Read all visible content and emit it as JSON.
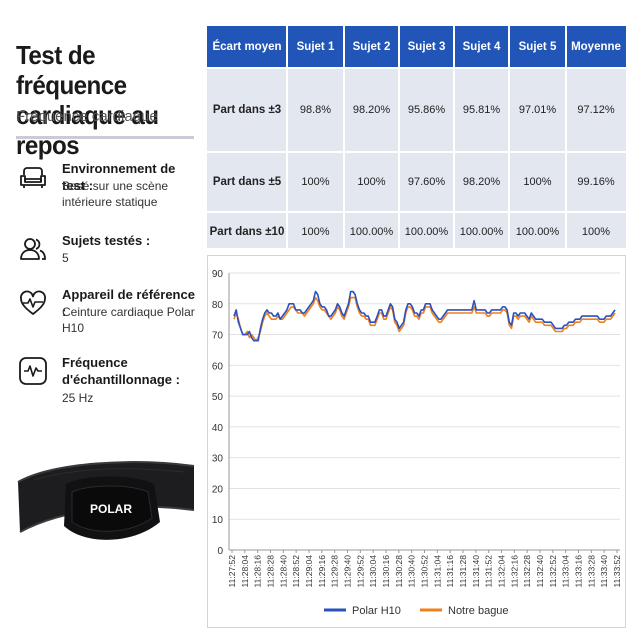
{
  "header": {
    "title": "Test de fréquence cardiaque au repos",
    "subtitle": "Fréquence cardiaque"
  },
  "info": [
    {
      "icon": "armchair-icon",
      "label": "Environnement de test :",
      "value": "Basé sur une scène intérieure statique"
    },
    {
      "icon": "users-icon",
      "label": "Sujets testés :",
      "value": "5"
    },
    {
      "icon": "heart-pulse-icon",
      "label": "Appareil de référence :",
      "value": "Ceinture cardiaque Polar H10"
    },
    {
      "icon": "waveform-icon",
      "label": "Fréquence d'échantillonnage :",
      "value": "25 Hz"
    }
  ],
  "device": {
    "brand": "POLAR"
  },
  "table": {
    "headers": [
      "Écart moyen",
      "Sujet 1",
      "Sujet 2",
      "Sujet 3",
      "Sujet 4",
      "Sujet 5",
      "Moyenne"
    ],
    "rows": [
      [
        "Part dans ±3",
        "98.8%",
        "98.20%",
        "95.86%",
        "95.81%",
        "97.01%",
        "97.12%"
      ],
      [
        "Part dans ±5",
        "100%",
        "100%",
        "97.60%",
        "98.20%",
        "100%",
        "99.16%"
      ],
      [
        "Part dans ±10",
        "100%",
        "100.00%",
        "100.00%",
        "100.00%",
        "100.00%",
        "100%"
      ]
    ]
  },
  "chart_data": {
    "type": "line",
    "ylim": [
      0,
      90
    ],
    "yticks": [
      0,
      10,
      20,
      30,
      40,
      50,
      60,
      70,
      80,
      90
    ],
    "x_tick_labels": [
      "11:27:52",
      "11:28:04",
      "11:28:16",
      "11:28:28",
      "11:28:40",
      "11:28:52",
      "11:29:04",
      "11:29:16",
      "11:29:28",
      "11:29:40",
      "11:29:52",
      "11:30:04",
      "11:30:16",
      "11:30:28",
      "11:30:40",
      "11:30:52",
      "11:31:04",
      "11:31:16",
      "11:31:28",
      "11:31:40",
      "11:31:52",
      "11:32:04",
      "11:32:16",
      "11:32:28",
      "11:32:40",
      "11:32:52",
      "11:33:04",
      "11:33:16",
      "11:33:28",
      "11:33:40",
      "11:33:52"
    ],
    "x_tick_labels_source": [
      "11:27:52",
      "11:28:04",
      "11:28:16",
      "11:28:28",
      "11:28:40",
      "11:28:52",
      "11:29:04",
      "11:29:16",
      "11:29:28",
      "11:29:40",
      "11:29:52",
      "11:30:04",
      "11:30:16",
      "11:30:28",
      "11:30:40",
      "11:30:52",
      "11:31:04",
      "11:31:16",
      "11:31:28",
      "11:31:40",
      "11:31:52",
      "11:32:04",
      "11:32:16",
      "11:32:28",
      "11:32:40",
      "11:32:52",
      "11:33:04",
      "11:33:16",
      "11:33:28",
      "11:33:40",
      "11:33:52"
    ],
    "legend": "bottom",
    "grid": true,
    "series": [
      {
        "name": "Polar H10",
        "color": "#2a52be",
        "values": [
          76,
          78,
          74,
          72,
          70,
          70,
          70,
          71,
          69,
          68,
          68,
          68,
          72,
          75,
          77,
          78,
          77,
          77,
          76,
          76,
          77,
          75,
          76,
          77,
          78,
          80,
          80,
          80,
          78,
          78,
          78,
          77,
          77,
          78,
          79,
          80,
          81,
          84,
          83,
          80,
          79,
          79,
          78,
          76,
          76,
          77,
          78,
          80,
          79,
          77,
          76,
          78,
          80,
          84,
          84,
          83,
          80,
          78,
          77,
          77,
          76,
          76,
          74,
          74,
          74,
          76,
          78,
          78,
          76,
          76,
          78,
          80,
          79,
          75,
          74,
          72,
          73,
          74,
          78,
          80,
          80,
          79,
          77,
          77,
          76,
          78,
          78,
          80,
          80,
          80,
          78,
          77,
          76,
          75,
          75,
          76,
          77,
          78,
          78,
          78,
          78,
          78,
          78,
          78,
          78,
          78,
          78,
          78,
          78,
          81,
          78,
          78,
          78,
          78,
          78,
          77,
          77,
          78,
          78,
          78,
          78,
          78,
          79,
          79,
          78,
          74,
          73,
          77,
          77,
          76,
          77,
          77,
          77,
          76,
          75,
          77,
          76,
          75,
          75,
          75,
          75,
          74,
          74,
          74,
          74,
          73,
          72,
          72,
          72,
          72,
          73,
          73,
          74,
          74,
          74,
          75,
          75,
          75,
          76,
          76,
          76,
          76,
          76,
          76,
          76,
          76,
          75,
          75,
          75,
          76,
          76,
          76,
          77,
          78
        ]
      },
      {
        "name": "Notre bague",
        "color": "#f07f1e",
        "values": [
          75,
          77,
          75,
          72,
          70,
          70,
          71,
          69,
          70,
          69,
          68,
          69,
          71,
          74,
          76,
          77,
          76,
          75,
          75,
          75,
          76,
          75,
          75,
          76,
          77,
          78,
          79,
          79,
          78,
          77,
          77,
          77,
          76,
          77,
          78,
          79,
          80,
          82,
          81,
          79,
          78,
          78,
          77,
          76,
          75,
          76,
          77,
          79,
          78,
          76,
          75,
          77,
          79,
          82,
          82,
          82,
          79,
          77,
          76,
          76,
          75,
          75,
          73,
          73,
          73,
          75,
          77,
          77,
          75,
          75,
          77,
          79,
          78,
          74,
          73,
          71,
          72,
          73,
          77,
          79,
          79,
          78,
          76,
          76,
          75,
          77,
          77,
          79,
          79,
          79,
          77,
          76,
          75,
          74,
          74,
          75,
          76,
          77,
          77,
          77,
          77,
          77,
          77,
          77,
          77,
          77,
          77,
          77,
          77,
          79,
          77,
          77,
          77,
          77,
          77,
          76,
          76,
          77,
          77,
          77,
          77,
          77,
          78,
          78,
          77,
          73,
          72,
          76,
          76,
          75,
          76,
          76,
          76,
          75,
          74,
          76,
          75,
          74,
          74,
          74,
          74,
          73,
          73,
          73,
          73,
          72,
          71,
          71,
          71,
          71,
          72,
          72,
          73,
          73,
          73,
          74,
          74,
          74,
          75,
          75,
          75,
          75,
          75,
          75,
          75,
          75,
          74,
          74,
          74,
          75,
          75,
          75,
          76,
          77
        ]
      }
    ]
  }
}
